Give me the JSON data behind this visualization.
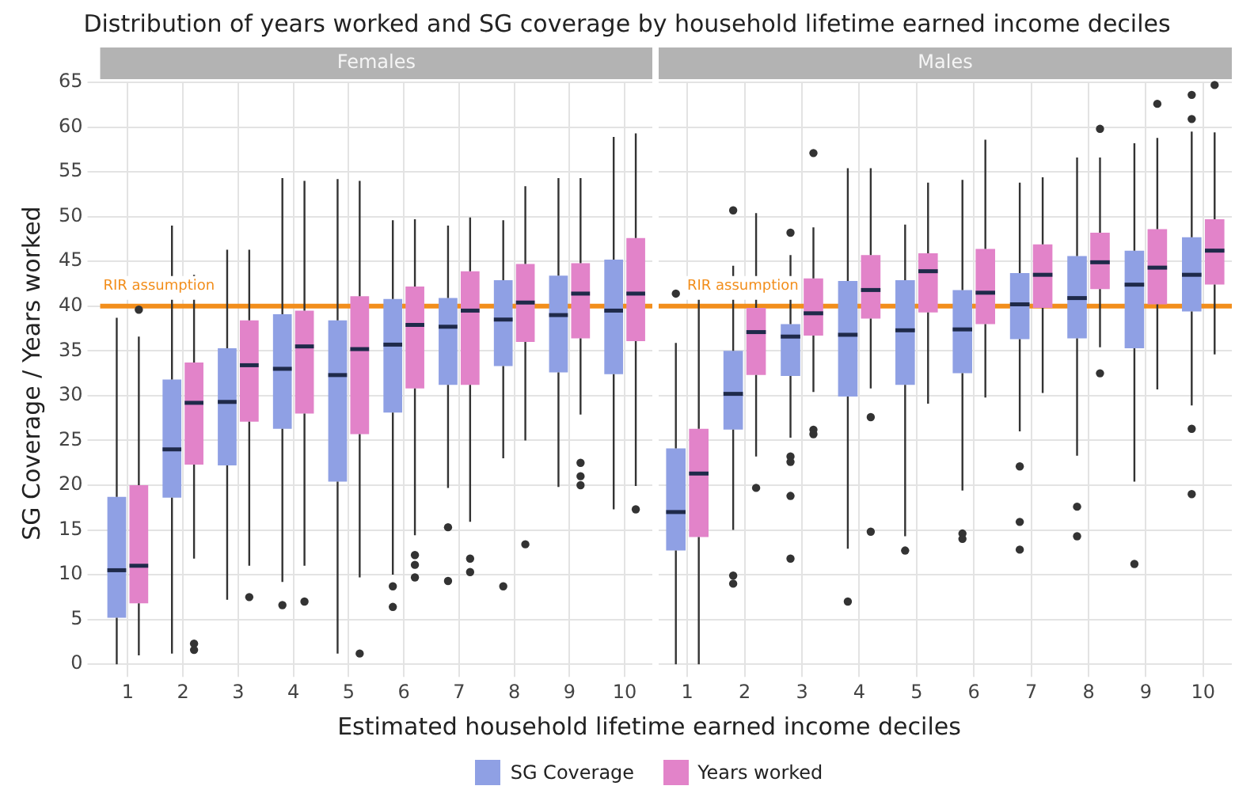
{
  "chart_data": [
    {
      "type": "box",
      "title": "Distribution of years worked and SG coverage by household lifetime earned income deciles",
      "subtitle": "Females",
      "xlabel": "Estimated household lifetime earned income deciles",
      "ylabel": "SG Coverage / Years worked",
      "categories": [
        "1",
        "2",
        "3",
        "4",
        "5",
        "6",
        "7",
        "8",
        "9",
        "10"
      ],
      "ylim": [
        0,
        65
      ],
      "yticks": [
        0,
        5,
        10,
        15,
        20,
        25,
        30,
        35,
        40,
        45,
        50,
        55,
        60,
        65
      ],
      "grid": true,
      "legend": "bottom",
      "ref_lines": [
        {
          "axis": "y",
          "value": 40,
          "label": "RIR assumption",
          "color": "#f28e1c"
        }
      ],
      "series": [
        {
          "name": "SG Coverage",
          "color": "#8fa0e4",
          "boxes": [
            {
              "low": 0,
              "q1": 5.2,
              "median": 10.5,
              "q3": 18.7,
              "high": 38.7
            },
            {
              "low": 1.2,
              "q1": 18.6,
              "median": 24,
              "q3": 31.8,
              "high": 49
            },
            {
              "low": 7.2,
              "q1": 22.2,
              "median": 29.3,
              "q3": 35.3,
              "high": 46.3
            },
            {
              "low": 9.2,
              "q1": 26.3,
              "median": 33,
              "q3": 39.1,
              "high": 54.3,
              "outliers": [
                6.6
              ]
            },
            {
              "low": 1.2,
              "q1": 20.4,
              "median": 32.3,
              "q3": 38.4,
              "high": 54.2
            },
            {
              "low": 10,
              "q1": 28.1,
              "median": 35.7,
              "q3": 40.8,
              "high": 49.6,
              "outliers": [
                8.7,
                6.4
              ]
            },
            {
              "low": 19.7,
              "q1": 31.2,
              "median": 37.7,
              "q3": 40.9,
              "high": 49,
              "outliers": [
                15.3,
                9.3
              ]
            },
            {
              "low": 23,
              "q1": 33.3,
              "median": 38.5,
              "q3": 42.9,
              "high": 49.6,
              "outliers": [
                8.7
              ]
            },
            {
              "low": 19.8,
              "q1": 32.6,
              "median": 39,
              "q3": 43.4,
              "high": 54.3
            },
            {
              "low": 17.3,
              "q1": 32.4,
              "median": 39.5,
              "q3": 45.2,
              "high": 58.9
            }
          ]
        },
        {
          "name": "Years worked",
          "color": "#e283c9",
          "boxes": [
            {
              "low": 1,
              "q1": 6.8,
              "median": 11,
              "q3": 20,
              "high": 36.6,
              "outliers": [
                39.6
              ]
            },
            {
              "low": 11.8,
              "q1": 22.3,
              "median": 29.2,
              "q3": 33.7,
              "high": 43.5,
              "outliers": [
                2.3,
                1.6
              ]
            },
            {
              "low": 11,
              "q1": 27.1,
              "median": 33.4,
              "q3": 38.4,
              "high": 46.3,
              "outliers": [
                7.5
              ]
            },
            {
              "low": 11,
              "q1": 28,
              "median": 35.5,
              "q3": 39.5,
              "high": 54,
              "outliers": [
                7
              ]
            },
            {
              "low": 9.7,
              "q1": 25.7,
              "median": 35.2,
              "q3": 41.1,
              "high": 54,
              "outliers": [
                1.2
              ]
            },
            {
              "low": 14.4,
              "q1": 30.8,
              "median": 37.9,
              "q3": 42.2,
              "high": 49.7,
              "outliers": [
                12.2,
                11.1,
                9.7
              ]
            },
            {
              "low": 15.9,
              "q1": 31.2,
              "median": 39.5,
              "q3": 43.9,
              "high": 49.9,
              "outliers": [
                11.8,
                10.3
              ]
            },
            {
              "low": 25,
              "q1": 36,
              "median": 40.4,
              "q3": 44.7,
              "high": 53.4,
              "outliers": [
                13.4
              ]
            },
            {
              "low": 27.9,
              "q1": 36.4,
              "median": 41.4,
              "q3": 44.8,
              "high": 54.3,
              "outliers": [
                22.5,
                21,
                20
              ]
            },
            {
              "low": 19.9,
              "q1": 36.1,
              "median": 41.4,
              "q3": 47.6,
              "high": 59.3,
              "outliers": [
                17.3
              ]
            }
          ]
        }
      ]
    },
    {
      "type": "box",
      "subtitle": "Males",
      "categories": [
        "1",
        "2",
        "3",
        "4",
        "5",
        "6",
        "7",
        "8",
        "9",
        "10"
      ],
      "ylim": [
        0,
        65
      ],
      "yticks": [
        0,
        5,
        10,
        15,
        20,
        25,
        30,
        35,
        40,
        45,
        50,
        55,
        60,
        65
      ],
      "tick_labels": "x",
      "grid": true,
      "ref_lines": [
        {
          "axis": "y",
          "value": 40,
          "label": "RIR assumption",
          "color": "#f28e1c"
        }
      ],
      "series": [
        {
          "color": "#8fa0e4",
          "boxes": [
            {
              "low": 0,
              "q1": 12.7,
              "median": 17,
              "q3": 24.1,
              "high": 35.9,
              "outliers": [
                41.4
              ]
            },
            {
              "low": 15,
              "q1": 26.2,
              "median": 30.2,
              "q3": 35,
              "high": 44.5,
              "outliers": [
                50.7,
                9.9,
                9
              ]
            },
            {
              "low": 25.3,
              "q1": 32.2,
              "median": 36.6,
              "q3": 38,
              "high": 45.7,
              "outliers": [
                48.2,
                23.2,
                22.6,
                18.8,
                11.8
              ]
            },
            {
              "low": 12.9,
              "q1": 29.9,
              "median": 36.8,
              "q3": 42.8,
              "high": 55.4,
              "outliers": [
                7
              ]
            },
            {
              "low": 14.3,
              "q1": 31.2,
              "median": 37.3,
              "q3": 42.9,
              "high": 49.1,
              "outliers": [
                12.7
              ]
            },
            {
              "low": 19.4,
              "q1": 32.5,
              "median": 37.4,
              "q3": 41.8,
              "high": 54.1,
              "outliers": [
                14.6,
                14
              ]
            },
            {
              "low": 26,
              "q1": 36.3,
              "median": 40.2,
              "q3": 43.7,
              "high": 53.8,
              "outliers": [
                22.1,
                15.9,
                12.8
              ]
            },
            {
              "low": 23.3,
              "q1": 36.4,
              "median": 40.9,
              "q3": 45.6,
              "high": 56.6,
              "outliers": [
                17.6,
                14.3
              ]
            },
            {
              "low": 20.4,
              "q1": 35.3,
              "median": 42.4,
              "q3": 46.2,
              "high": 58.2,
              "outliers": [
                11.2
              ]
            },
            {
              "low": 28.9,
              "q1": 39.4,
              "median": 43.5,
              "q3": 47.7,
              "high": 59.5,
              "outliers": [
                63.6,
                60.9,
                26.3,
                19
              ]
            }
          ]
        },
        {
          "color": "#e283c9",
          "boxes": [
            {
              "low": 0,
              "q1": 14.2,
              "median": 21.3,
              "q3": 26.3,
              "high": 41.2
            },
            {
              "low": 23.2,
              "q1": 32.3,
              "median": 37.1,
              "q3": 39.8,
              "high": 50.4,
              "outliers": [
                19.7
              ]
            },
            {
              "low": 30.4,
              "q1": 36.7,
              "median": 39.2,
              "q3": 43.1,
              "high": 48.8,
              "outliers": [
                57.1,
                26.2,
                25.7
              ]
            },
            {
              "low": 30.8,
              "q1": 38.6,
              "median": 41.8,
              "q3": 45.7,
              "high": 55.4,
              "outliers": [
                27.6,
                14.8
              ]
            },
            {
              "low": 29.1,
              "q1": 39.3,
              "median": 43.9,
              "q3": 45.9,
              "high": 53.8
            },
            {
              "low": 29.8,
              "q1": 38,
              "median": 41.5,
              "q3": 46.4,
              "high": 58.6
            },
            {
              "low": 30.3,
              "q1": 39.8,
              "median": 43.5,
              "q3": 46.9,
              "high": 54.4
            },
            {
              "low": 35.4,
              "q1": 41.9,
              "median": 44.9,
              "q3": 48.2,
              "high": 56.6,
              "outliers": [
                59.8,
                32.5
              ]
            },
            {
              "low": 30.7,
              "q1": 40.2,
              "median": 44.3,
              "q3": 48.6,
              "high": 58.8,
              "outliers": [
                62.6
              ]
            },
            {
              "low": 34.6,
              "q1": 42.4,
              "median": 46.2,
              "q3": 49.7,
              "high": 59.4,
              "outliers": [
                64.7
              ]
            }
          ]
        }
      ]
    }
  ]
}
